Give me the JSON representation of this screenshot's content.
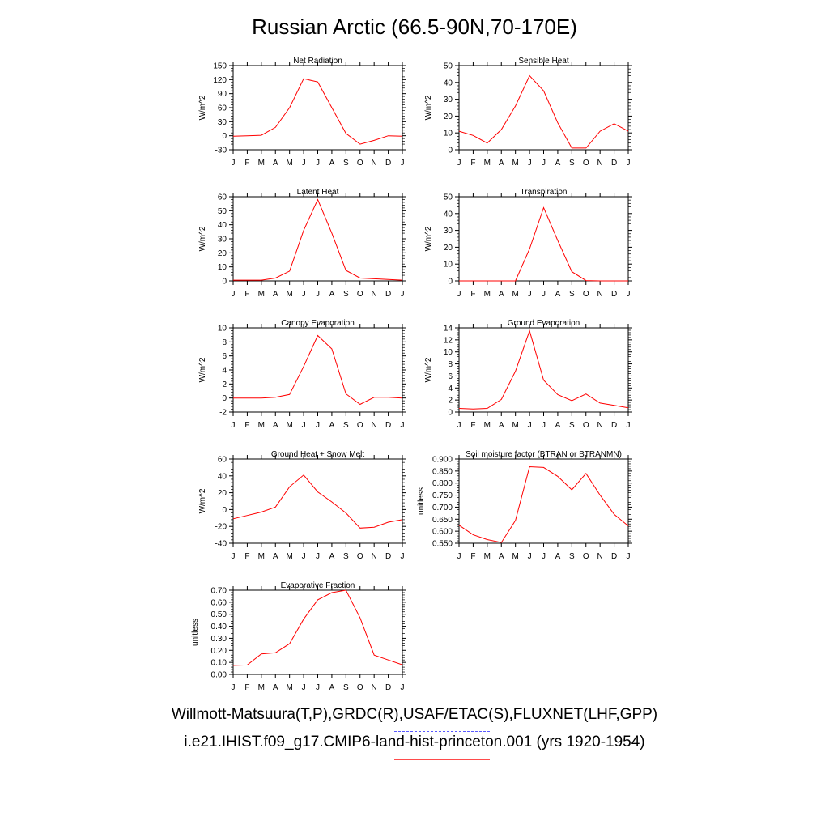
{
  "title": "Russian Arctic (66.5-90N,70-170E)",
  "footer": {
    "observations": "Willmott-Matsuura(T,P),GRDC(R),USAF/ETAC(S),FLUXNET(LHF,GPP)",
    "case": "i.e21.IHIST.f09_g17.CMIP6-land-hist-princeton.001 (yrs 1920-1954)"
  },
  "colors": {
    "model_line": "#ff0000",
    "obs_line": "#5a5aff"
  },
  "chart_data": [
    {
      "type": "line",
      "title": "Net Radiation",
      "ylabel": "W/m^2",
      "categories": [
        "J",
        "F",
        "M",
        "A",
        "M",
        "J",
        "J",
        "A",
        "S",
        "O",
        "N",
        "D",
        "J"
      ],
      "ylim": [
        -30,
        150
      ],
      "yticks": [
        -30,
        0,
        30,
        60,
        90,
        120,
        150
      ],
      "tick_labels": [
        "-30",
        "0",
        "30",
        "60",
        "90",
        "120",
        "150"
      ],
      "values": [
        -1,
        0,
        1,
        18,
        60,
        122,
        115,
        60,
        5,
        -18,
        -10,
        0,
        -1
      ]
    },
    {
      "type": "line",
      "title": "Sensible Heat",
      "ylabel": "W/m^2",
      "categories": [
        "J",
        "F",
        "M",
        "A",
        "M",
        "J",
        "J",
        "A",
        "S",
        "O",
        "N",
        "D",
        "J"
      ],
      "ylim": [
        0,
        50
      ],
      "yticks": [
        0,
        10,
        20,
        30,
        40,
        50
      ],
      "tick_labels": [
        "0",
        "10",
        "20",
        "30",
        "40",
        "50"
      ],
      "values": [
        11,
        8.5,
        4,
        12,
        26,
        44,
        35,
        16,
        1,
        1,
        11,
        15.5,
        11
      ]
    },
    {
      "type": "line",
      "title": "Latent Heat",
      "ylabel": "W/m^2",
      "categories": [
        "J",
        "F",
        "M",
        "A",
        "M",
        "J",
        "J",
        "A",
        "S",
        "O",
        "N",
        "D",
        "J"
      ],
      "ylim": [
        0,
        60
      ],
      "yticks": [
        0,
        10,
        20,
        30,
        40,
        50,
        60
      ],
      "tick_labels": [
        "0",
        "10",
        "20",
        "30",
        "40",
        "50",
        "60"
      ],
      "values": [
        0.5,
        0.5,
        0.5,
        2,
        7,
        36,
        58,
        34,
        7.5,
        2,
        1.5,
        1,
        0.5
      ]
    },
    {
      "type": "line",
      "title": "Transpiration",
      "ylabel": "W/m^2",
      "categories": [
        "J",
        "F",
        "M",
        "A",
        "M",
        "J",
        "J",
        "A",
        "S",
        "O",
        "N",
        "D",
        "J"
      ],
      "ylim": [
        0,
        50
      ],
      "yticks": [
        0,
        10,
        20,
        30,
        40,
        50
      ],
      "tick_labels": [
        "0",
        "10",
        "20",
        "30",
        "40",
        "50"
      ],
      "values": [
        0,
        0,
        0,
        0,
        0,
        19,
        43.5,
        24,
        5.5,
        0.2,
        0,
        0,
        0
      ]
    },
    {
      "type": "line",
      "title": "Canopy Evaporation",
      "ylabel": "W/m^2",
      "categories": [
        "J",
        "F",
        "M",
        "A",
        "M",
        "J",
        "J",
        "A",
        "S",
        "O",
        "N",
        "D",
        "J"
      ],
      "ylim": [
        -2,
        10
      ],
      "yticks": [
        -2,
        0,
        2,
        4,
        6,
        8,
        10
      ],
      "tick_labels": [
        "-2",
        "0",
        "2",
        "4",
        "6",
        "8",
        "10"
      ],
      "values": [
        0,
        0,
        0,
        0.1,
        0.5,
        4.5,
        8.9,
        7,
        0.6,
        -0.9,
        0.1,
        0.1,
        0
      ]
    },
    {
      "type": "line",
      "title": "Ground Evaporation",
      "ylabel": "W/m^2",
      "categories": [
        "J",
        "F",
        "M",
        "A",
        "M",
        "J",
        "J",
        "A",
        "S",
        "O",
        "N",
        "D",
        "J"
      ],
      "ylim": [
        0,
        14
      ],
      "yticks": [
        0,
        2,
        4,
        6,
        8,
        10,
        12,
        14
      ],
      "tick_labels": [
        "0",
        "2",
        "4",
        "6",
        "8",
        "10",
        "12",
        "14"
      ],
      "values": [
        0.6,
        0.5,
        0.6,
        2.1,
        6.8,
        13.5,
        5.3,
        2.9,
        1.9,
        3,
        1.5,
        1.1,
        0.7
      ]
    },
    {
      "type": "line",
      "title": "Ground Heat + Snow Melt",
      "ylabel": "W/m^2",
      "categories": [
        "J",
        "F",
        "M",
        "A",
        "M",
        "J",
        "J",
        "A",
        "S",
        "O",
        "N",
        "D",
        "J"
      ],
      "ylim": [
        -40,
        60
      ],
      "yticks": [
        -40,
        -20,
        0,
        20,
        40,
        60
      ],
      "tick_labels": [
        "-40",
        "-20",
        "0",
        "20",
        "40",
        "60"
      ],
      "values": [
        -11,
        -7,
        -3,
        3,
        27,
        41,
        21,
        9,
        -4,
        -22,
        -21,
        -15,
        -12
      ]
    },
    {
      "type": "line",
      "title": "Soil moisture factor (BTRAN or BTRANMN)",
      "ylabel": "unitless",
      "categories": [
        "J",
        "F",
        "M",
        "A",
        "M",
        "J",
        "J",
        "A",
        "S",
        "O",
        "N",
        "D",
        "J"
      ],
      "ylim": [
        0.55,
        0.9
      ],
      "yticks": [
        0.55,
        0.6,
        0.65,
        0.7,
        0.75,
        0.8,
        0.85,
        0.9
      ],
      "tick_labels": [
        "0.550",
        "0.600",
        "0.650",
        "0.700",
        "0.750",
        "0.800",
        "0.850",
        "0.900"
      ],
      "values": [
        0.625,
        0.585,
        0.565,
        0.553,
        0.645,
        0.868,
        0.865,
        0.828,
        0.772,
        0.84,
        0.75,
        0.67,
        0.622
      ]
    },
    {
      "type": "line",
      "title": "Evaporative Fraction",
      "ylabel": "unitless",
      "categories": [
        "J",
        "F",
        "M",
        "A",
        "M",
        "J",
        "J",
        "A",
        "S",
        "O",
        "N",
        "D",
        "J"
      ],
      "ylim": [
        0,
        0.7
      ],
      "yticks": [
        0,
        0.1,
        0.2,
        0.3,
        0.4,
        0.5,
        0.6,
        0.7
      ],
      "tick_labels": [
        "0.00",
        "0.10",
        "0.20",
        "0.30",
        "0.40",
        "0.50",
        "0.60",
        "0.70"
      ],
      "values": [
        0.075,
        0.078,
        0.17,
        0.18,
        0.255,
        0.46,
        0.62,
        0.68,
        0.7,
        0.47,
        0.16,
        0.12,
        0.08
      ]
    }
  ]
}
